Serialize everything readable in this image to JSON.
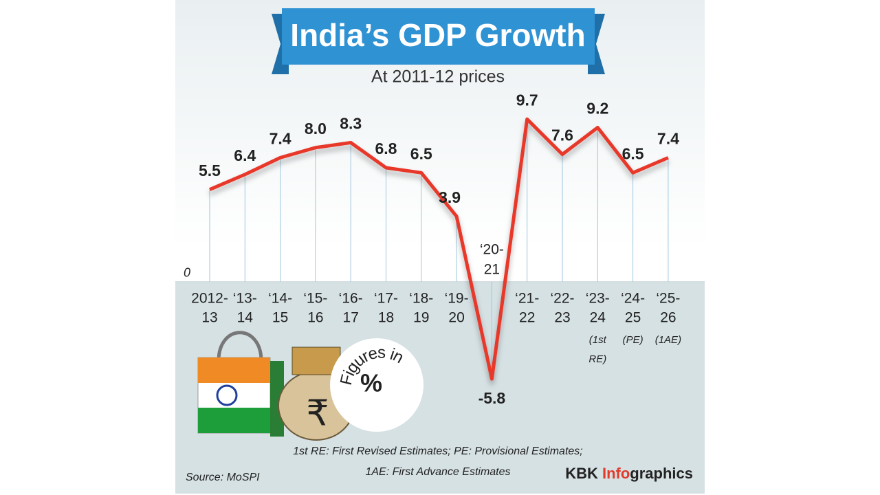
{
  "chart_data": {
    "type": "line",
    "title": "India’s GDP Growth",
    "subtitle": "At 2011-12 prices",
    "categories": [
      [
        "2012-",
        "13"
      ],
      [
        "‘13-",
        "14"
      ],
      [
        "‘14-",
        "15"
      ],
      [
        "‘15-",
        "16"
      ],
      [
        "‘16-",
        "17"
      ],
      [
        "‘17-",
        "18"
      ],
      [
        "‘18-",
        "19"
      ],
      [
        "‘19-",
        "20"
      ],
      [
        "‘20-",
        "21"
      ],
      [
        "‘21-",
        "22"
      ],
      [
        "‘22-",
        "23"
      ],
      [
        "‘23-",
        "24",
        "(1st",
        "RE)"
      ],
      [
        "‘24-",
        "25",
        "(PE)"
      ],
      [
        "‘25-",
        "26",
        "(1AE)"
      ]
    ],
    "values": [
      5.5,
      6.4,
      7.4,
      8.0,
      8.3,
      6.8,
      6.5,
      3.9,
      -5.8,
      9.7,
      7.6,
      9.2,
      6.5,
      7.4
    ],
    "value_labels": [
      "5.5",
      "6.4",
      "7.4",
      "8.0",
      "8.3",
      "6.8",
      "6.5",
      "3.9",
      "-5.8",
      "9.7",
      "7.6",
      "9.2",
      "6.5",
      "7.4"
    ],
    "color": "#e8392b",
    "ylim": [
      -6,
      10
    ],
    "yticks": [
      0
    ],
    "badge": {
      "text": "Figures in",
      "symbol": "%"
    },
    "footnotes": [
      "1st RE: First Revised Estimates; PE: Provisional Estimates;",
      "1AE: First Advance Estimates"
    ],
    "source": "Source: MoSPI",
    "brand": [
      "KBK ",
      "Info",
      "graphics"
    ]
  }
}
